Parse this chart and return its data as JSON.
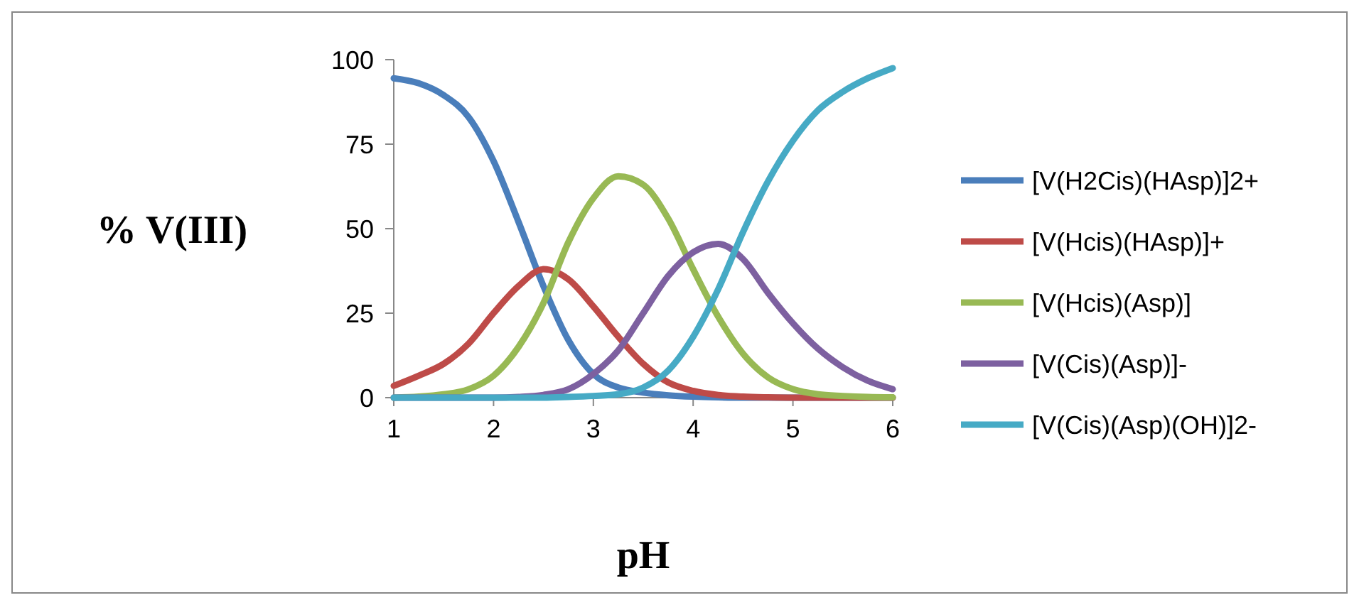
{
  "chart_data": {
    "type": "line",
    "xlabel": "pH",
    "ylabel": "% V(III)",
    "x": [
      1,
      1.25,
      1.5,
      1.75,
      2,
      2.25,
      2.5,
      2.75,
      3,
      3.25,
      3.5,
      3.75,
      4,
      4.25,
      4.5,
      4.75,
      5,
      5.25,
      5.5,
      5.75,
      6
    ],
    "xlim": [
      1,
      6
    ],
    "xticks": [
      1,
      2,
      3,
      4,
      5,
      6
    ],
    "ylim": [
      0,
      100
    ],
    "yticks": [
      0,
      25,
      50,
      75,
      100
    ],
    "grid": false,
    "legend": "right",
    "marker": "none",
    "line_style": "solid",
    "series": [
      {
        "name": "[V(H2Cis)(HAsp)]2+",
        "color": "#4a7ebb",
        "values": [
          94.5,
          93,
          89.5,
          83,
          70,
          52,
          33,
          17,
          7,
          3,
          1.5,
          0.7,
          0.3,
          0.1,
          0,
          0,
          0,
          0,
          0,
          0,
          0
        ]
      },
      {
        "name": "[V(Hcis)(HAsp)]+",
        "color": "#be4b48",
        "values": [
          3.5,
          6.5,
          10,
          16,
          25,
          33,
          38,
          35,
          27,
          18,
          10,
          4.5,
          2,
          0.8,
          0.3,
          0.1,
          0,
          0,
          0,
          0,
          0
        ]
      },
      {
        "name": "[V(Hcis)(Asp)]",
        "color": "#98b954",
        "values": [
          0,
          0.3,
          1,
          2.5,
          6.5,
          15,
          28,
          46,
          59,
          65.5,
          63,
          53,
          38,
          24,
          13,
          6,
          2.5,
          1,
          0.5,
          0.2,
          0.1
        ]
      },
      {
        "name": "[V(Cis)(Asp)]-",
        "color": "#7d60a0",
        "values": [
          0,
          0,
          0,
          0,
          0,
          0.2,
          0.8,
          2.5,
          7,
          14,
          25,
          36,
          43,
          45.5,
          41,
          31,
          22,
          14.5,
          9,
          5,
          2.5
        ]
      },
      {
        "name": "[V(Cis)(Asp)(OH)]2-",
        "color": "#46aac5",
        "values": [
          0,
          0,
          0,
          0,
          0,
          0,
          0,
          0.2,
          0.5,
          1,
          3,
          8,
          18,
          32,
          49,
          64,
          76,
          85,
          90.5,
          94.5,
          97.5
        ]
      }
    ]
  }
}
